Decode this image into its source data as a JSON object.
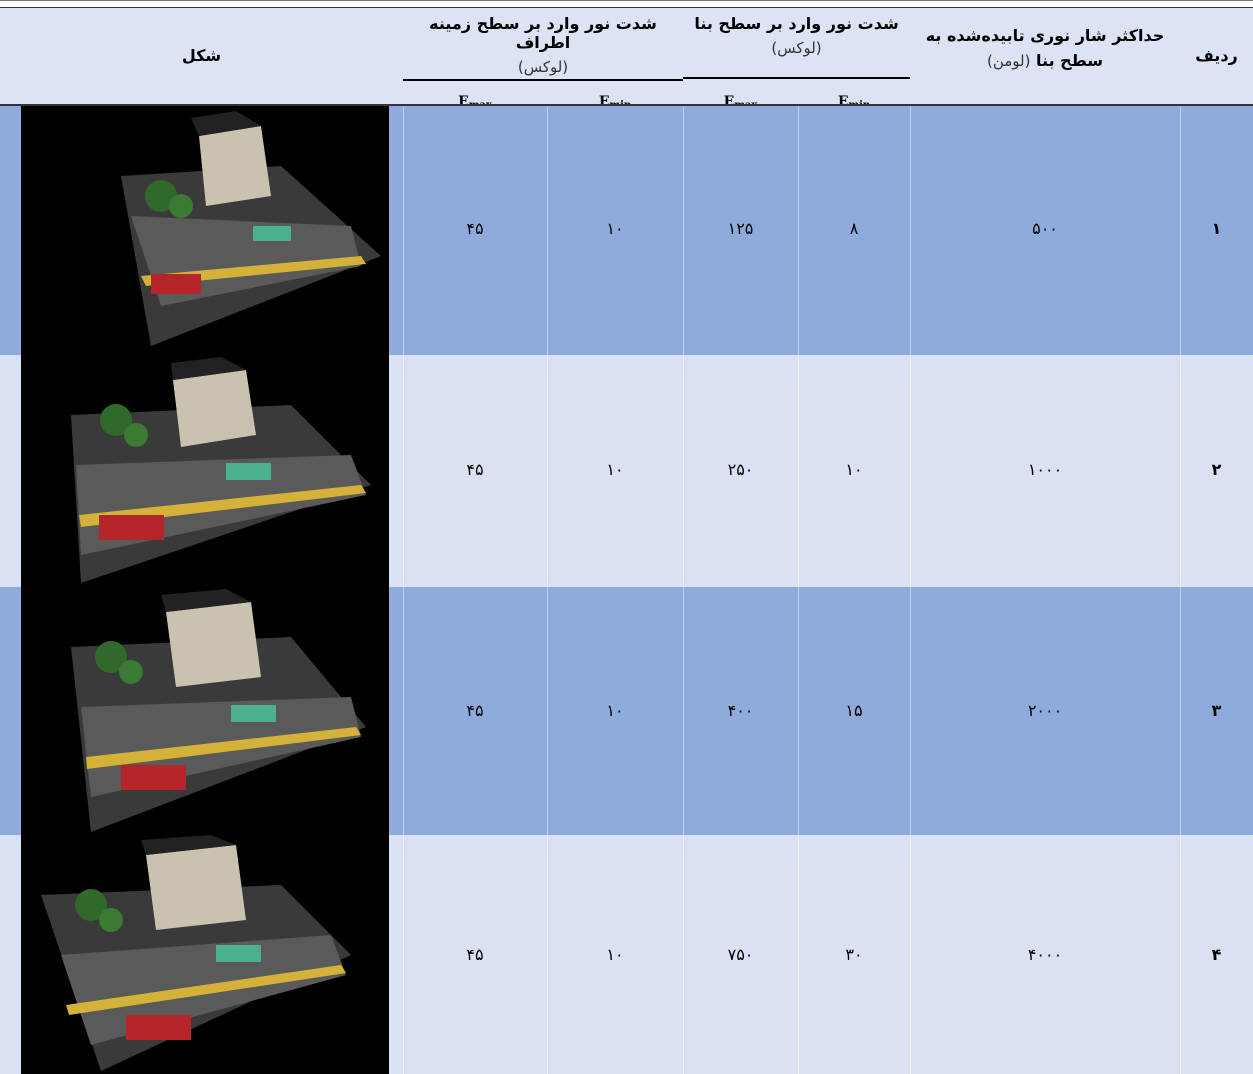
{
  "header": {
    "col_row": "ردیف",
    "col_flux_line1": "حداکثر شار نوری تابیده‌شده به",
    "col_flux_line2": "سطح بنا",
    "col_flux_unit": "(لومن)",
    "col_building": "شدت نور وارد بر سطح بنا",
    "col_building_unit": "(لوکس)",
    "col_ground": "شدت نور وارد بر سطح زمینه اطراف",
    "col_ground_unit": "(لوکس)",
    "col_shape": "شکل",
    "e_max": "E",
    "e_max_sub": "max",
    "e_min": "E",
    "e_min_sub": "min"
  },
  "rows": [
    {
      "index": "۱",
      "flux": "۵۰۰",
      "b_emin": "۸",
      "b_emax": "۱۲۵",
      "g_emin": "۱۰",
      "g_emax": "۴۵"
    },
    {
      "index": "۲",
      "flux": "۱۰۰۰",
      "b_emin": "۱۰",
      "b_emax": "۲۵۰",
      "g_emin": "۱۰",
      "g_emax": "۴۵"
    },
    {
      "index": "۳",
      "flux": "۲۰۰۰",
      "b_emin": "۱۵",
      "b_emax": "۴۰۰",
      "g_emin": "۱۰",
      "g_emax": "۴۵"
    },
    {
      "index": "۴",
      "flux": "۴۰۰۰",
      "b_emin": "۳۰",
      "b_emax": "۷۵۰",
      "g_emin": "۱۰",
      "g_emax": "۴۵"
    }
  ],
  "colors": {
    "header_bg": "#dbe4f4",
    "dark_row": "#8eabdc",
    "light_row": "#d9e2f3"
  }
}
